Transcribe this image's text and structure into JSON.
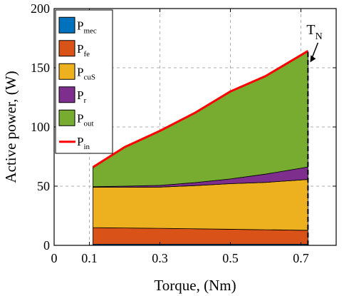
{
  "chart_data": {
    "type": "area",
    "xlabel": "Torque, (Nm)",
    "ylabel": "Active power, (W)",
    "xlim": [
      0,
      0.8
    ],
    "ylim": [
      0,
      200
    ],
    "x_ticks": [
      "0",
      "0.1",
      "0.3",
      "0.5",
      "0.7"
    ],
    "x_tick_values": [
      0,
      0.1,
      0.3,
      0.5,
      0.7
    ],
    "y_ticks": [
      "0",
      "50",
      "100",
      "150",
      "200"
    ],
    "y_tick_values": [
      0,
      50,
      100,
      150,
      200
    ],
    "grid": true,
    "legend_position": "top-left",
    "x": [
      0.11,
      0.2,
      0.3,
      0.4,
      0.5,
      0.6,
      0.72
    ],
    "series": [
      {
        "base": "P",
        "sub": "mec",
        "values": [
          1,
          1,
          1,
          1,
          1,
          1,
          1
        ],
        "color": "#0072bd"
      },
      {
        "base": "P",
        "sub": "fe",
        "values": [
          14,
          13.7,
          13.4,
          13,
          12.6,
          12.2,
          11.7
        ],
        "color": "#d95319"
      },
      {
        "base": "P",
        "sub": "cuS",
        "values": [
          34,
          34.3,
          34.8,
          36.5,
          38.5,
          40,
          43
        ],
        "color": "#edb120"
      },
      {
        "base": "P",
        "sub": "r",
        "values": [
          0.5,
          1,
          1.5,
          2.5,
          4,
          7,
          10.5
        ],
        "color": "#7e2f8e"
      },
      {
        "base": "P",
        "sub": "out",
        "values": [
          17,
          33,
          46,
          59,
          74,
          83,
          98
        ],
        "color": "#77ac30"
      }
    ],
    "input_line": {
      "base": "P",
      "sub": "in",
      "values": [
        66,
        83,
        96.7,
        112,
        130,
        143,
        164.2
      ],
      "color": "#ff0000"
    },
    "annotation": {
      "base": "T",
      "sub": "N",
      "x": 0.72
    }
  }
}
